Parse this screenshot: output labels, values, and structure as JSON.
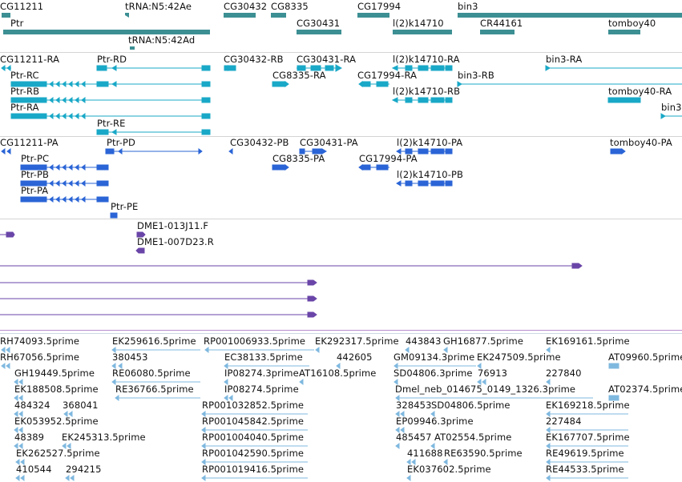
{
  "colors": {
    "gene": "#3c8f93",
    "transcript_teal": "#19a8c7",
    "transcript_blue": "#2a64d6",
    "clone_purple": "#6a45a8",
    "est_light": "#7fb8df"
  },
  "tracks": {
    "genes": {
      "labels": [
        {
          "t": "CG11211"
        },
        {
          "t": "tRNA:N5:42Ae"
        },
        {
          "t": "CG30432"
        },
        {
          "t": "CG8335"
        },
        {
          "t": "CG17994"
        },
        {
          "t": "bin3"
        },
        {
          "t": "Ptr"
        },
        {
          "t": "CG30431"
        },
        {
          "t": "l(2)k14710"
        },
        {
          "t": "CR44161"
        },
        {
          "t": "tomboy40"
        },
        {
          "t": "tRNA:N5:42Ad"
        }
      ]
    },
    "transcripts_teal": {
      "labels": [
        {
          "t": "CG11211-RA"
        },
        {
          "t": "Ptr-RD"
        },
        {
          "t": "CG30432-RB"
        },
        {
          "t": "CG30431-RA"
        },
        {
          "t": "l(2)k14710-RA"
        },
        {
          "t": "bin3-RA"
        },
        {
          "t": "Ptr-RC"
        },
        {
          "t": "CG8335-RA"
        },
        {
          "t": "CG17994-RA"
        },
        {
          "t": "bin3-RB"
        },
        {
          "t": "Ptr-RB"
        },
        {
          "t": "l(2)k14710-RB"
        },
        {
          "t": "tomboy40-RA"
        },
        {
          "t": "Ptr-RA"
        },
        {
          "t": "bin3"
        },
        {
          "t": "Ptr-RE"
        }
      ]
    },
    "transcripts_blue": {
      "labels": [
        {
          "t": "CG11211-PA"
        },
        {
          "t": "Ptr-PD"
        },
        {
          "t": "CG30432-PB"
        },
        {
          "t": "CG30431-PA"
        },
        {
          "t": "l(2)k14710-PA"
        },
        {
          "t": "tomboy40-PA"
        },
        {
          "t": "Ptr-PC"
        },
        {
          "t": "CG8335-PA"
        },
        {
          "t": "CG17994-PA"
        },
        {
          "t": "Ptr-PB"
        },
        {
          "t": "l(2)k14710-PB"
        },
        {
          "t": "Ptr-PA"
        },
        {
          "t": "Ptr-PE"
        }
      ]
    },
    "clones": {
      "labels": [
        {
          "t": "DME1-013J11.F"
        },
        {
          "t": "DME1-007D23.R"
        }
      ]
    },
    "ests": {
      "labels": [
        {
          "t": "RH74093.5prime"
        },
        {
          "t": "EK259616.5prime"
        },
        {
          "t": "RP001006933.5prime"
        },
        {
          "t": "EK292317.5prime"
        },
        {
          "t": "443843"
        },
        {
          "t": "GH16877.5prime"
        },
        {
          "t": "EK169161.5prime"
        },
        {
          "t": "RH67056.5prime"
        },
        {
          "t": "380453"
        },
        {
          "t": "EC38133.5prime"
        },
        {
          "t": "442605"
        },
        {
          "t": "GM09134.3prime"
        },
        {
          "t": "EK247509.5prime"
        },
        {
          "t": "AT09960.5prime"
        },
        {
          "t": "GH19449.5prime"
        },
        {
          "t": "RE06080.5prime"
        },
        {
          "t": "IP08274.3prime"
        },
        {
          "t": "AT16108.5prime"
        },
        {
          "t": "SD04806.3prime"
        },
        {
          "t": "76913"
        },
        {
          "t": "227840"
        },
        {
          "t": "EK188508.5prime"
        },
        {
          "t": "RE36766.5prime"
        },
        {
          "t": "IP08274.5prime"
        },
        {
          "t": "Dmel_neb_014675_0149_1326.3prime"
        },
        {
          "t": "AT02374.5prime"
        },
        {
          "t": "484324"
        },
        {
          "t": "368041"
        },
        {
          "t": "RP001032852.5prime"
        },
        {
          "t": "328453"
        },
        {
          "t": "SD04806.5prime"
        },
        {
          "t": "EK169218.5prime"
        },
        {
          "t": "EK053952.5prime"
        },
        {
          "t": "RP001045842.5prime"
        },
        {
          "t": "EP09946.3prime"
        },
        {
          "t": "227484"
        },
        {
          "t": "48389"
        },
        {
          "t": "EK245313.5prime"
        },
        {
          "t": "RP001004040.5prime"
        },
        {
          "t": "485457"
        },
        {
          "t": "AT02554.5prime"
        },
        {
          "t": "EK167707.5prime"
        },
        {
          "t": "EK262527.5prime"
        },
        {
          "t": "RP001042590.5prime"
        },
        {
          "t": "411688"
        },
        {
          "t": "RE63590.5prime"
        },
        {
          "t": "RE49619.5prime"
        },
        {
          "t": "410544"
        },
        {
          "t": "294215"
        },
        {
          "t": "RP001019416.5prime"
        },
        {
          "t": "EK037602.5prime"
        },
        {
          "t": "RE44533.5prime"
        }
      ]
    }
  }
}
